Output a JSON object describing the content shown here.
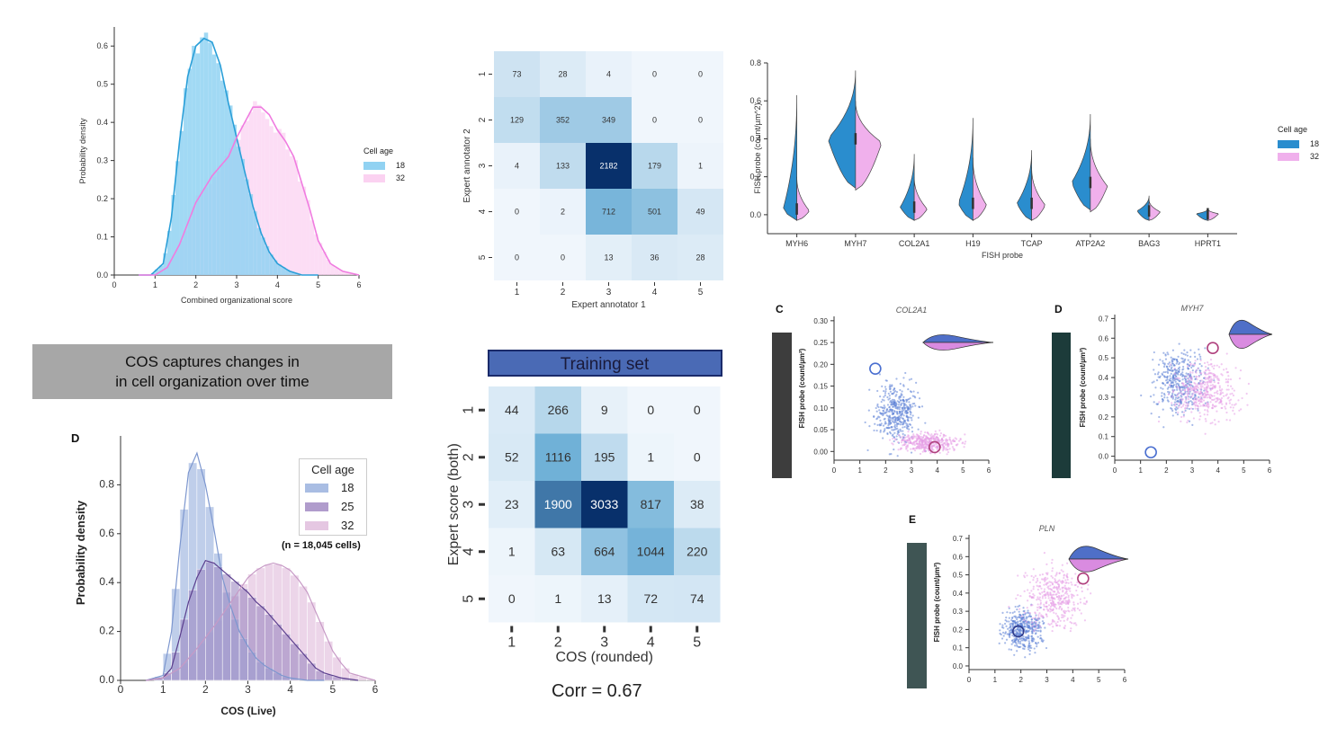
{
  "banner": {
    "line1": "COS captures changes in",
    "line2": "in cell organization over time"
  },
  "corr_text": "Corr = 0.67",
  "hist_top": {
    "chart_data": {
      "type": "area",
      "xlabel": "Combined organizational score",
      "ylabel": "Probability density",
      "xlim": [
        0,
        6
      ],
      "ylim": [
        0,
        0.65
      ],
      "xticks": [
        0,
        1,
        2,
        3,
        4,
        5,
        6
      ],
      "yticks": [
        0.0,
        0.1,
        0.2,
        0.3,
        0.4,
        0.5,
        0.6
      ],
      "legend_title": "Cell age",
      "series": [
        {
          "name": "18",
          "color": "#41b6e6",
          "x": [
            0.6,
            0.9,
            1.2,
            1.4,
            1.6,
            1.8,
            2.0,
            2.2,
            2.4,
            2.6,
            2.8,
            3.0,
            3.2,
            3.4,
            3.6,
            3.8,
            4.0,
            4.3,
            4.6,
            5.0
          ],
          "y": [
            0.0,
            0.0,
            0.03,
            0.15,
            0.35,
            0.52,
            0.6,
            0.62,
            0.61,
            0.55,
            0.45,
            0.36,
            0.27,
            0.18,
            0.11,
            0.06,
            0.03,
            0.01,
            0.0,
            0.0
          ]
        },
        {
          "name": "32",
          "color": "#f5b8ea",
          "x": [
            0.6,
            1.0,
            1.3,
            1.6,
            2.0,
            2.4,
            2.8,
            3.0,
            3.2,
            3.4,
            3.6,
            3.8,
            4.0,
            4.2,
            4.4,
            4.6,
            4.8,
            5.0,
            5.3,
            5.6,
            6.0
          ],
          "y": [
            0.0,
            0.0,
            0.02,
            0.08,
            0.19,
            0.26,
            0.31,
            0.36,
            0.4,
            0.44,
            0.44,
            0.42,
            0.38,
            0.35,
            0.31,
            0.24,
            0.17,
            0.09,
            0.03,
            0.01,
            0.0
          ]
        }
      ]
    }
  },
  "confusion_top": {
    "chart_data": {
      "type": "heatmap",
      "xlabel": "Expert annotator 1",
      "ylabel": "Expert annotator 2",
      "x": [
        "1",
        "2",
        "3",
        "4",
        "5"
      ],
      "y": [
        "1",
        "2",
        "3",
        "4",
        "5"
      ],
      "values": [
        [
          73,
          28,
          4,
          0,
          0
        ],
        [
          129,
          352,
          349,
          0,
          0
        ],
        [
          4,
          133,
          2182,
          179,
          1
        ],
        [
          0,
          2,
          712,
          501,
          49
        ],
        [
          0,
          0,
          13,
          36,
          28
        ]
      ]
    }
  },
  "violin": {
    "chart_data": {
      "type": "violin",
      "xlabel": "FISH probe",
      "ylabel": "FISH probe (count/µm^2)",
      "ylim": [
        -0.1,
        0.8
      ],
      "yticks": [
        0.0,
        0.2,
        0.4,
        0.6,
        0.8
      ],
      "categories": [
        "MYH6",
        "MYH7",
        "COL2A1",
        "H19",
        "TCAP",
        "ATP2A2",
        "BAG3",
        "HPRT1"
      ],
      "legend_title": "Cell age",
      "series": [
        {
          "name": "18",
          "color": "#2a8dce",
          "medians": [
            0.03,
            0.4,
            0.04,
            0.06,
            0.06,
            0.17,
            0.02,
            0.005
          ],
          "maxes": [
            0.63,
            0.76,
            0.32,
            0.51,
            0.34,
            0.53,
            0.1,
            0.03
          ]
        },
        {
          "name": "32",
          "color": "#f0b0ec",
          "medians": [
            0.02,
            0.38,
            0.03,
            0.05,
            0.05,
            0.15,
            0.015,
            0.005
          ],
          "maxes": [
            0.2,
            0.6,
            0.2,
            0.3,
            0.25,
            0.4,
            0.08,
            0.03
          ]
        }
      ]
    }
  },
  "hist_d": {
    "panel_label": "D",
    "n_text": "(n = 18,045 cells)",
    "chart_data": {
      "type": "bar",
      "xlabel": "COS (Live)",
      "ylabel": "Probability density",
      "xlim": [
        0,
        6
      ],
      "ylim": [
        0,
        1.0
      ],
      "xticks": [
        0,
        1,
        2,
        3,
        4,
        5,
        6
      ],
      "yticks": [
        0.0,
        0.2,
        0.4,
        0.6,
        0.8
      ],
      "legend_title": "Cell age",
      "series": [
        {
          "name": "18",
          "color": "#a9bde3",
          "x": [
            0.6,
            1.0,
            1.2,
            1.4,
            1.6,
            1.8,
            2.0,
            2.2,
            2.4,
            2.6,
            2.8,
            3.0,
            3.2,
            3.4,
            3.6,
            3.8,
            4.0,
            4.4,
            4.8
          ],
          "y": [
            0.0,
            0.02,
            0.2,
            0.55,
            0.85,
            0.93,
            0.8,
            0.62,
            0.42,
            0.3,
            0.2,
            0.14,
            0.09,
            0.06,
            0.04,
            0.02,
            0.01,
            0.0,
            0.0
          ]
        },
        {
          "name": "25",
          "color": "#b09ccc",
          "x": [
            0.6,
            1.0,
            1.2,
            1.4,
            1.6,
            1.8,
            2.0,
            2.2,
            2.4,
            2.6,
            2.8,
            3.0,
            3.2,
            3.4,
            3.6,
            3.8,
            4.0,
            4.2,
            4.4,
            4.6,
            4.8,
            5.2,
            5.6
          ],
          "y": [
            0.0,
            0.01,
            0.05,
            0.18,
            0.32,
            0.42,
            0.49,
            0.48,
            0.45,
            0.42,
            0.39,
            0.36,
            0.32,
            0.29,
            0.25,
            0.21,
            0.17,
            0.13,
            0.09,
            0.05,
            0.03,
            0.01,
            0.0
          ]
        },
        {
          "name": "32",
          "color": "#e5c7e2",
          "x": [
            0.6,
            1.0,
            1.4,
            1.8,
            2.2,
            2.6,
            3.0,
            3.2,
            3.4,
            3.6,
            3.8,
            4.0,
            4.2,
            4.4,
            4.6,
            4.8,
            5.0,
            5.2,
            5.4,
            5.8,
            6.0
          ],
          "y": [
            0.0,
            0.01,
            0.05,
            0.13,
            0.22,
            0.32,
            0.42,
            0.45,
            0.47,
            0.48,
            0.47,
            0.45,
            0.41,
            0.36,
            0.28,
            0.2,
            0.12,
            0.07,
            0.03,
            0.01,
            0.0
          ]
        }
      ]
    }
  },
  "confusion_bottom": {
    "title": "Training set",
    "chart_data": {
      "type": "heatmap",
      "xlabel": "COS (rounded)",
      "ylabel": "Expert score (both)",
      "x": [
        "1",
        "2",
        "3",
        "4",
        "5"
      ],
      "y": [
        "1",
        "2",
        "3",
        "4",
        "5"
      ],
      "values": [
        [
          44,
          266,
          9,
          0,
          0
        ],
        [
          52,
          1116,
          195,
          1,
          0
        ],
        [
          23,
          1900,
          3033,
          817,
          38
        ],
        [
          1,
          63,
          664,
          1044,
          220
        ],
        [
          0,
          1,
          13,
          72,
          74
        ]
      ]
    }
  },
  "scatter_c": {
    "panel_label": "C",
    "chart_data": {
      "type": "scatter",
      "title": "COL2A1",
      "ylabel": "FISH probe (count/µm²)",
      "xlim": [
        0,
        6
      ],
      "ylim": [
        -0.02,
        0.31
      ],
      "xticks": [
        0,
        1,
        2,
        3,
        4,
        5,
        6
      ],
      "yticks": [
        0.0,
        0.05,
        0.1,
        0.15,
        0.2,
        0.25,
        0.3
      ],
      "series": [
        {
          "name": "18",
          "color": "#5b7fd6",
          "center": [
            2.4,
            0.09
          ],
          "spread": [
            0.6,
            0.05
          ]
        },
        {
          "name": "32",
          "color": "#e59ce6",
          "center": [
            3.6,
            0.02
          ],
          "spread": [
            0.8,
            0.015
          ]
        }
      ],
      "markers": [
        {
          "x": 1.6,
          "y": 0.19,
          "color": "#4a6fd0"
        },
        {
          "x": 3.9,
          "y": 0.01,
          "color": "#b0417e"
        }
      ]
    }
  },
  "scatter_d": {
    "panel_label": "D",
    "chart_data": {
      "type": "scatter",
      "title": "MYH7",
      "ylabel": "FISH probe (count/µm²)",
      "xlim": [
        0,
        6
      ],
      "ylim": [
        -0.02,
        0.72
      ],
      "xticks": [
        0,
        1,
        2,
        3,
        4,
        5,
        6
      ],
      "yticks": [
        0.0,
        0.1,
        0.2,
        0.3,
        0.4,
        0.5,
        0.6,
        0.7
      ],
      "series": [
        {
          "name": "18",
          "color": "#5b7fd6",
          "center": [
            2.5,
            0.37
          ],
          "spread": [
            0.7,
            0.12
          ]
        },
        {
          "name": "32",
          "color": "#e59ce6",
          "center": [
            3.5,
            0.32
          ],
          "spread": [
            0.9,
            0.1
          ]
        }
      ],
      "markers": [
        {
          "x": 1.4,
          "y": 0.02,
          "color": "#4a6fd0"
        },
        {
          "x": 3.8,
          "y": 0.55,
          "color": "#b0417e"
        }
      ]
    }
  },
  "scatter_e": {
    "panel_label": "E",
    "chart_data": {
      "type": "scatter",
      "title": "PLN",
      "ylabel": "FISH probe (count/µm²)",
      "xlim": [
        0,
        6
      ],
      "ylim": [
        -0.02,
        0.72
      ],
      "xticks": [
        0,
        1,
        2,
        3,
        4,
        5,
        6
      ],
      "yticks": [
        0.0,
        0.1,
        0.2,
        0.3,
        0.4,
        0.5,
        0.6,
        0.7
      ],
      "series": [
        {
          "name": "18",
          "color": "#5b7fd6",
          "center": [
            2.1,
            0.2
          ],
          "spread": [
            0.5,
            0.08
          ]
        },
        {
          "name": "32",
          "color": "#e59ce6",
          "center": [
            3.3,
            0.38
          ],
          "spread": [
            0.8,
            0.12
          ]
        }
      ],
      "markers": [
        {
          "x": 1.9,
          "y": 0.19,
          "color": "#2e3a8a"
        },
        {
          "x": 4.4,
          "y": 0.48,
          "color": "#b0417e"
        }
      ]
    }
  }
}
